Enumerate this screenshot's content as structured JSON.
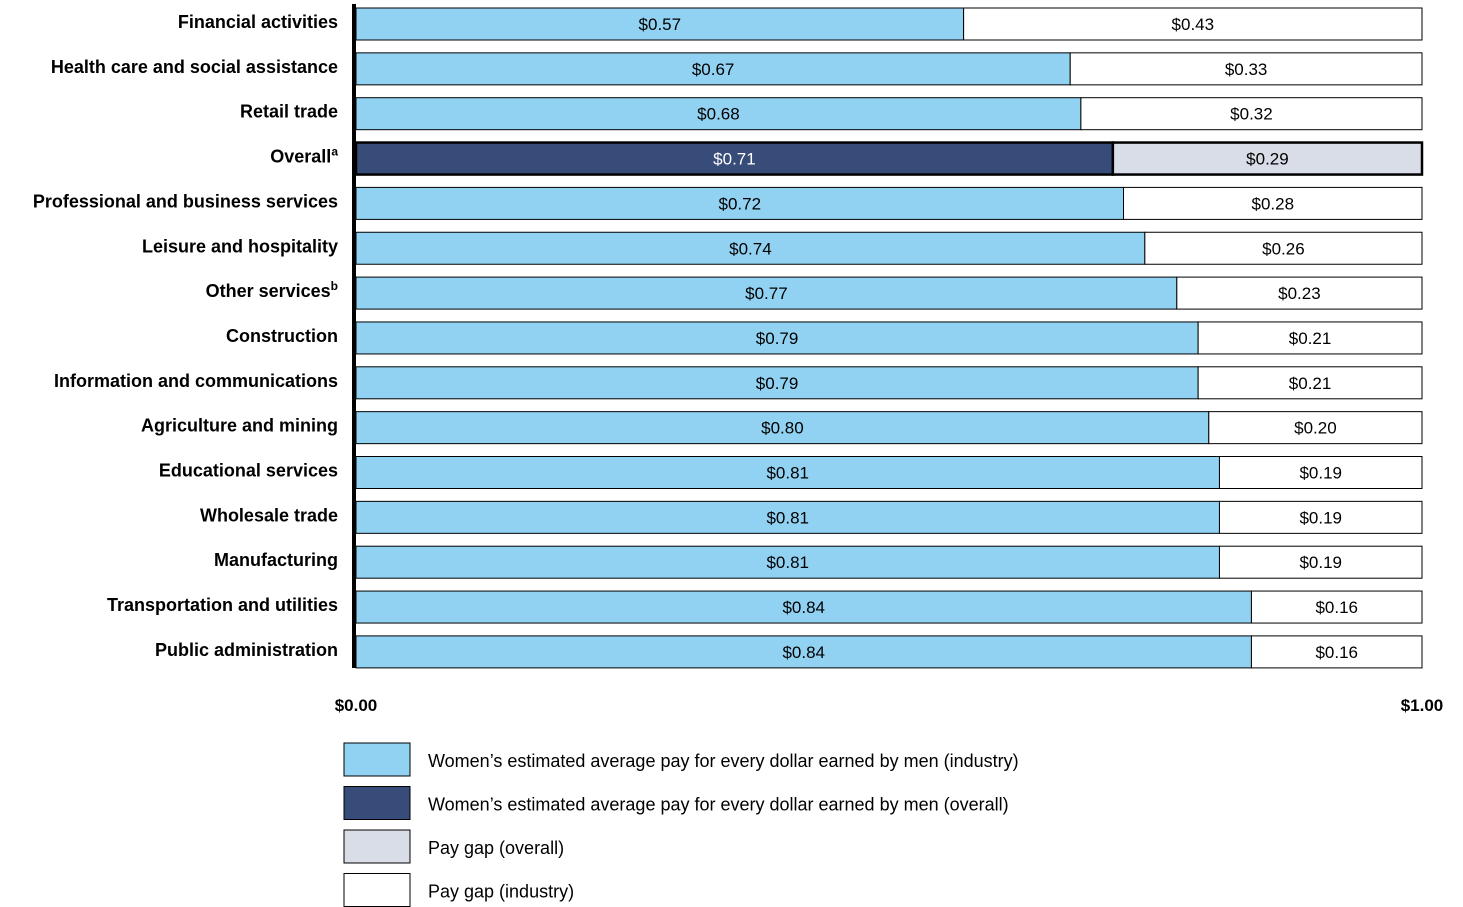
{
  "chart_data": {
    "type": "bar",
    "orientation": "horizontal",
    "stacked": true,
    "categories": [
      {
        "label": "Financial activities",
        "sup": "",
        "women": 0.57,
        "gap": 0.43,
        "women_label": "$0.57",
        "gap_label": "$0.43",
        "overall": false
      },
      {
        "label": "Health care and social assistance",
        "sup": "",
        "women": 0.67,
        "gap": 0.33,
        "women_label": "$0.67",
        "gap_label": "$0.33",
        "overall": false
      },
      {
        "label": "Retail trade",
        "sup": "",
        "women": 0.68,
        "gap": 0.32,
        "women_label": "$0.68",
        "gap_label": "$0.32",
        "overall": false
      },
      {
        "label": "Overall",
        "sup": "a",
        "women": 0.71,
        "gap": 0.29,
        "women_label": "$0.71",
        "gap_label": "$0.29",
        "overall": true
      },
      {
        "label": "Professional and business services",
        "sup": "",
        "women": 0.72,
        "gap": 0.28,
        "women_label": "$0.72",
        "gap_label": "$0.28",
        "overall": false
      },
      {
        "label": "Leisure and hospitality",
        "sup": "",
        "women": 0.74,
        "gap": 0.26,
        "women_label": "$0.74",
        "gap_label": "$0.26",
        "overall": false
      },
      {
        "label": "Other services",
        "sup": "b",
        "women": 0.77,
        "gap": 0.23,
        "women_label": "$0.77",
        "gap_label": "$0.23",
        "overall": false
      },
      {
        "label": "Construction",
        "sup": "",
        "women": 0.79,
        "gap": 0.21,
        "women_label": "$0.79",
        "gap_label": "$0.21",
        "overall": false
      },
      {
        "label": "Information and communications",
        "sup": "",
        "women": 0.79,
        "gap": 0.21,
        "women_label": "$0.79",
        "gap_label": "$0.21",
        "overall": false
      },
      {
        "label": "Agriculture and mining",
        "sup": "",
        "women": 0.8,
        "gap": 0.2,
        "women_label": "$0.80",
        "gap_label": "$0.20",
        "overall": false
      },
      {
        "label": "Educational services",
        "sup": "",
        "women": 0.81,
        "gap": 0.19,
        "women_label": "$0.81",
        "gap_label": "$0.19",
        "overall": false
      },
      {
        "label": "Wholesale trade",
        "sup": "",
        "women": 0.81,
        "gap": 0.19,
        "women_label": "$0.81",
        "gap_label": "$0.19",
        "overall": false
      },
      {
        "label": "Manufacturing",
        "sup": "",
        "women": 0.81,
        "gap": 0.19,
        "women_label": "$0.81",
        "gap_label": "$0.19",
        "overall": false
      },
      {
        "label": "Transportation and utilities",
        "sup": "",
        "women": 0.84,
        "gap": 0.16,
        "women_label": "$0.84",
        "gap_label": "$0.16",
        "overall": false
      },
      {
        "label": "Public administration",
        "sup": "",
        "women": 0.84,
        "gap": 0.16,
        "women_label": "$0.84",
        "gap_label": "$0.16",
        "overall": false
      }
    ],
    "xlim": [
      0,
      1
    ],
    "x_ticks": [
      "$0.00",
      "$1.00"
    ],
    "title": "",
    "xlabel": "",
    "ylabel": "",
    "grid": false,
    "legend_position": "bottom-left",
    "legend": [
      {
        "label": "Women’s estimated average pay for every dollar earned by men (industry)",
        "color": "#91d2f2"
      },
      {
        "label": "Women’s estimated average pay for every dollar earned by men (overall)",
        "color": "#374c79"
      },
      {
        "label": "Pay gap (overall)",
        "color": "#d8dde7"
      },
      {
        "label": "Pay gap (industry)",
        "color": "#ffffff"
      }
    ],
    "colors": {
      "women_industry": "#91d2f2",
      "women_overall": "#374c79",
      "gap_overall": "#d8dde7",
      "gap_industry": "#ffffff",
      "outline": "#000000"
    }
  }
}
